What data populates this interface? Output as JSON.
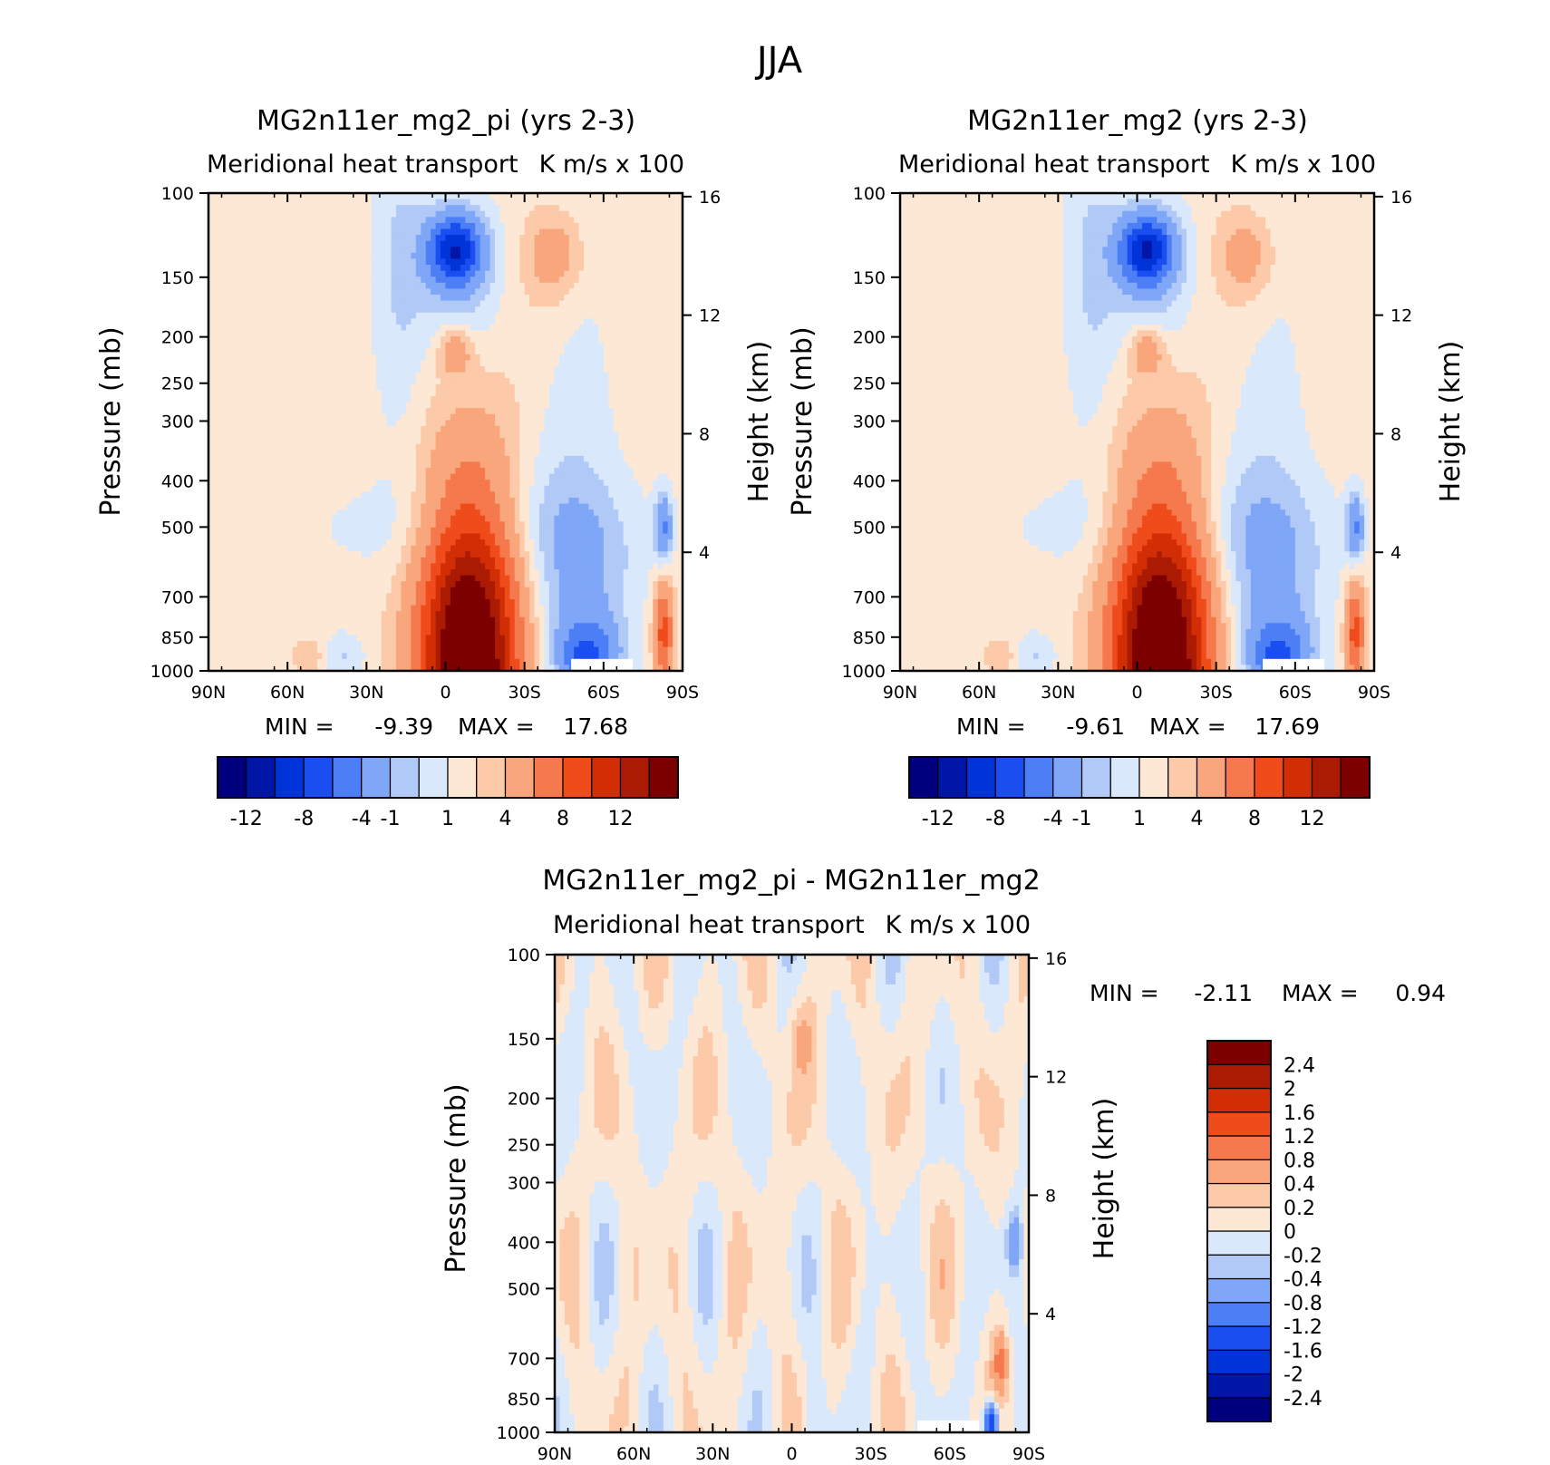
{
  "figure_title": "JJA",
  "colors": {
    "full": [
      "#00007f",
      "#0016a7",
      "#0034d8",
      "#1b4ef0",
      "#4c7ef5",
      "#7fa6f7",
      "#b0c9f7",
      "#d9e8fb",
      "#fde8d6",
      "#fcc9a9",
      "#f9a67c",
      "#f5794c",
      "#f04b1b",
      "#d22e06",
      "#ab1a02",
      "#7c0000"
    ],
    "diff": [
      "#00007f",
      "#0016a7",
      "#0034d8",
      "#1b4ef0",
      "#4c7ef5",
      "#7fa6f7",
      "#b0c9f7",
      "#d9e8fb",
      "#fde8d6",
      "#fcc9a9",
      "#f9a67c",
      "#f5794c",
      "#f04b1b",
      "#d22e06",
      "#ab1a02",
      "#7c0000"
    ]
  },
  "chart_data": [
    {
      "type": "heatmap",
      "title": "MG2n11er_mg2_pi (yrs 2-3)",
      "subtitle_left": "Meridional heat transport",
      "subtitle_right": "K m/s x 100",
      "xlabel": "",
      "ylabel": "Pressure (mb)",
      "y2label": "Height (km)",
      "x_ticks": [
        "90N",
        "60N",
        "30N",
        "0",
        "30S",
        "60S",
        "90S"
      ],
      "y_ticks": [
        "100",
        "150",
        "200",
        "250",
        "300",
        "400",
        "500",
        "700",
        "850",
        "1000"
      ],
      "y2_ticks": [
        "16",
        "12",
        "8",
        "4"
      ],
      "min_label": "MIN =",
      "min": "-9.39",
      "max_label": "MAX =",
      "max": "17.68",
      "colorbar_labels": [
        "-12",
        "-8",
        "-4",
        "-1",
        "1",
        "4",
        "8",
        "12"
      ],
      "features": {
        "upper_tropical_min": -9.0,
        "lower_tropical_max": 17.68,
        "subtropical_upper_max": 2.5
      }
    },
    {
      "type": "heatmap",
      "title": "MG2n11er_mg2 (yrs 2-3)",
      "subtitle_left": "Meridional heat transport",
      "subtitle_right": "K m/s x 100",
      "xlabel": "",
      "ylabel": "Pressure (mb)",
      "y2label": "Height (km)",
      "x_ticks": [
        "90N",
        "60N",
        "30N",
        "0",
        "30S",
        "60S",
        "90S"
      ],
      "y_ticks": [
        "100",
        "150",
        "200",
        "250",
        "300",
        "400",
        "500",
        "700",
        "850",
        "1000"
      ],
      "y2_ticks": [
        "16",
        "12",
        "8",
        "4"
      ],
      "min_label": "MIN =",
      "min": "-9.61",
      "max_label": "MAX =",
      "max": "17.69",
      "colorbar_labels": [
        "-12",
        "-8",
        "-4",
        "-1",
        "1",
        "4",
        "8",
        "12"
      ],
      "features": {
        "upper_tropical_min": -9.2,
        "lower_tropical_max": 17.69,
        "subtropical_upper_max": 2.3
      }
    },
    {
      "type": "heatmap",
      "title": "MG2n11er_mg2_pi - MG2n11er_mg2",
      "subtitle_left": "Meridional heat transport",
      "subtitle_right": "K m/s x 100",
      "xlabel": "",
      "ylabel": "Pressure (mb)",
      "y2label": "Height (km)",
      "x_ticks": [
        "90N",
        "60N",
        "30N",
        "0",
        "30S",
        "60S",
        "90S"
      ],
      "y_ticks": [
        "100",
        "150",
        "200",
        "250",
        "300",
        "400",
        "500",
        "700",
        "850",
        "1000"
      ],
      "y2_ticks": [
        "16",
        "12",
        "8",
        "4"
      ],
      "min_label": "MIN =",
      "min": "-2.11",
      "max_label": "MAX =",
      "max": "0.94",
      "colorbar_labels": [
        "2.4",
        "2",
        "1.6",
        "1.2",
        "0.8",
        "0.4",
        "0.2",
        "0",
        "-0.2",
        "-0.4",
        "-0.8",
        "-1.2",
        "-1.6",
        "-2",
        "-2.4"
      ]
    }
  ]
}
